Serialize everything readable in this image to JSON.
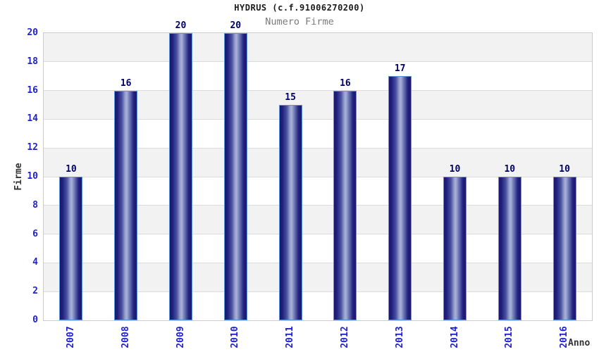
{
  "chart_data": {
    "type": "bar",
    "title": "HYDRUS (c.f.91006270200)",
    "subtitle": "Numero Firme",
    "xlabel": "Anno",
    "ylabel": "Firme",
    "categories": [
      "2007",
      "2008",
      "2009",
      "2010",
      "2011",
      "2012",
      "2013",
      "2014",
      "2015",
      "2016"
    ],
    "values": [
      10,
      16,
      20,
      20,
      15,
      16,
      17,
      10,
      10,
      10
    ],
    "ylim": [
      0,
      20
    ],
    "yticks": [
      0,
      2,
      4,
      6,
      8,
      10,
      12,
      14,
      16,
      18,
      20
    ],
    "grid": "horizontal gridlines every 2 units with alternating gray/white bands, gray topmost",
    "legend": "none",
    "value_labels": "shown above each bar",
    "colors": {
      "bar_edge_dark": "#181873",
      "bar_center_light": "#a9b1d8",
      "bar_border": "#5e93de",
      "tick_label": "#2222cc",
      "value_label": "#000066",
      "title": "#1a1a1a",
      "subtitle": "#7a7a7a",
      "axis_title": "#333333",
      "band_gray": "#f2f2f2",
      "band_white": "#ffffff",
      "grid_line": "#dcdcdc",
      "plot_border": "#cccccc",
      "background": "#ffffff"
    }
  }
}
